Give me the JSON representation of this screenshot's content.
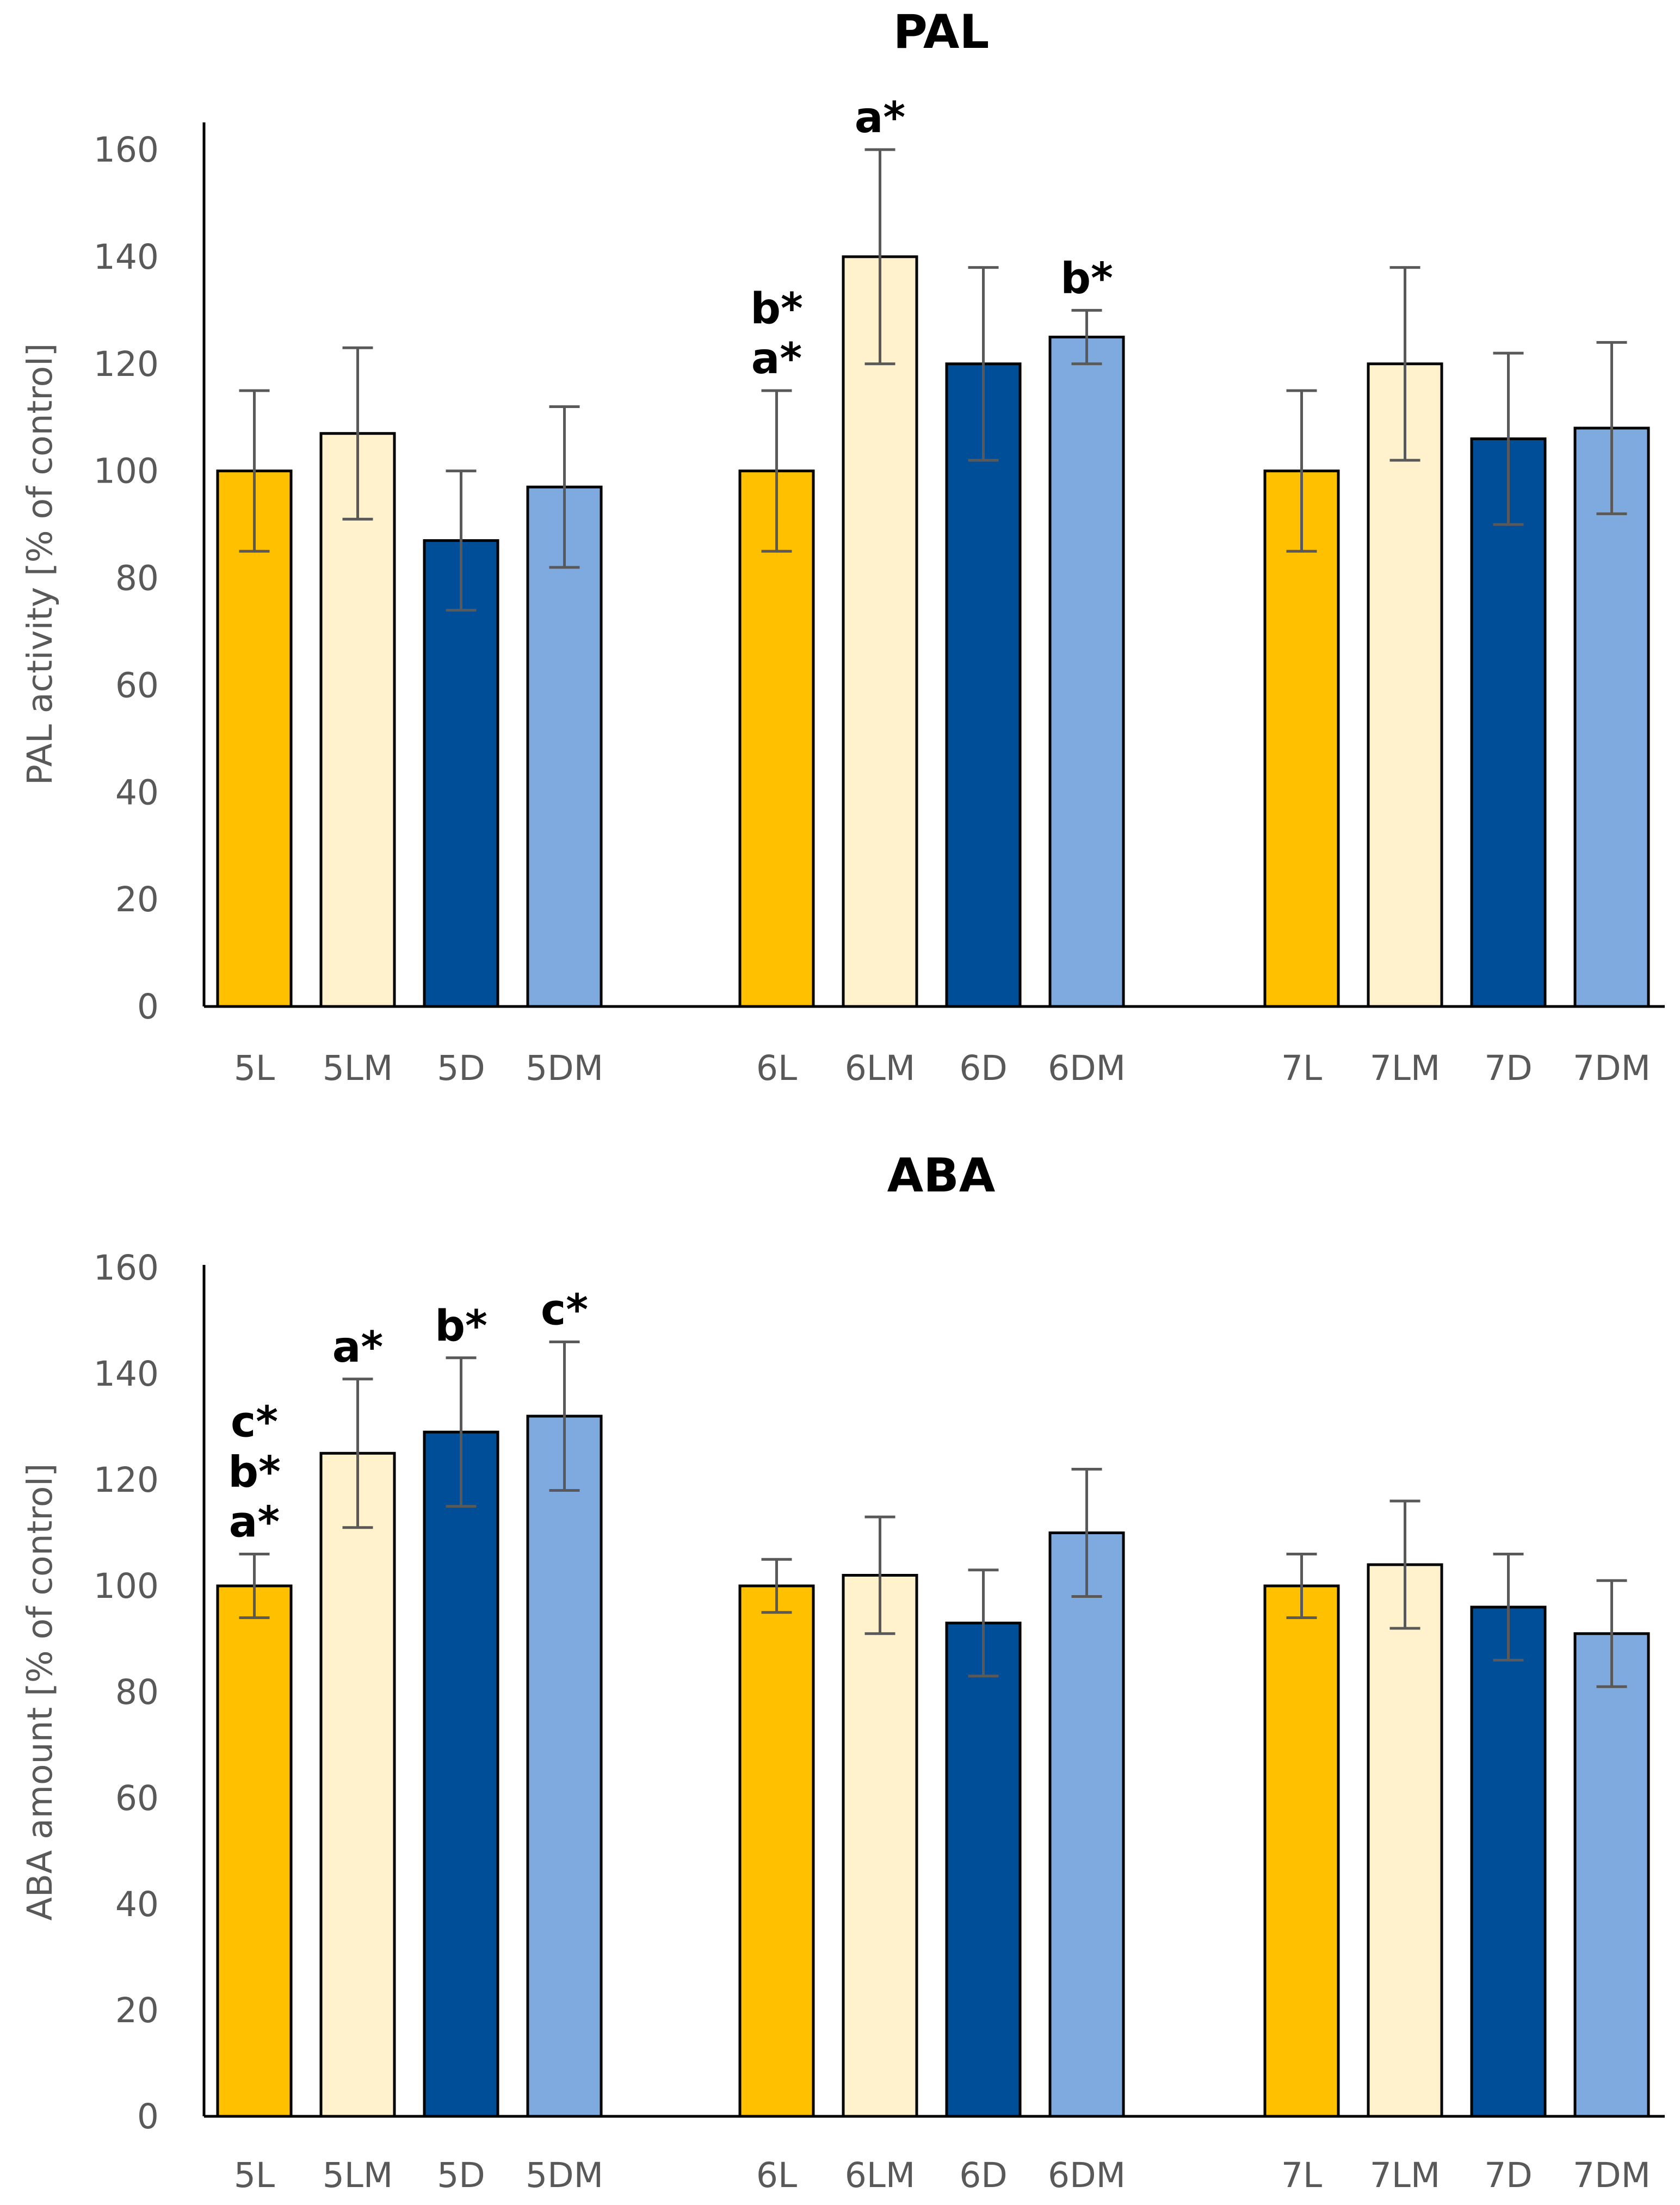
{
  "chart_data": [
    {
      "type": "bar",
      "title": "PAL",
      "ylabel": "PAL activity [% of control]",
      "xlabel": "",
      "ylim": [
        0,
        160
      ],
      "yticks": [
        0,
        20,
        40,
        60,
        80,
        100,
        120,
        140,
        160
      ],
      "groups": [
        {
          "name": "5",
          "bars": [
            {
              "label": "5L",
              "value": 100,
              "err": 15,
              "color": "#FFC000"
            },
            {
              "label": "5LM",
              "value": 107,
              "err": 16,
              "color": "#FFF2CC"
            },
            {
              "label": "5D",
              "value": 87,
              "err": 13,
              "color": "#004E98"
            },
            {
              "label": "5DM",
              "value": 97,
              "err": 15,
              "color": "#7FAADF"
            }
          ]
        },
        {
          "name": "6",
          "bars": [
            {
              "label": "6L",
              "value": 100,
              "err": 15,
              "color": "#FFC000",
              "annotations": [
                "b*",
                "a*"
              ]
            },
            {
              "label": "6LM",
              "value": 140,
              "err": 20,
              "color": "#FFF2CC",
              "annotations": [
                "a*"
              ]
            },
            {
              "label": "6D",
              "value": 120,
              "err": 18,
              "color": "#004E98"
            },
            {
              "label": "6DM",
              "value": 125,
              "err": 5,
              "color": "#7FAADF",
              "annotations": [
                "b*"
              ]
            }
          ]
        },
        {
          "name": "7",
          "bars": [
            {
              "label": "7L",
              "value": 100,
              "err": 15,
              "color": "#FFC000"
            },
            {
              "label": "7LM",
              "value": 120,
              "err": 18,
              "color": "#FFF2CC"
            },
            {
              "label": "7D",
              "value": 106,
              "err": 16,
              "color": "#004E98"
            },
            {
              "label": "7DM",
              "value": 108,
              "err": 16,
              "color": "#7FAADF"
            }
          ]
        }
      ]
    },
    {
      "type": "bar",
      "title": "ABA",
      "ylabel": "ABA amount [% of control]",
      "xlabel": "",
      "ylim": [
        0,
        160
      ],
      "yticks": [
        0,
        20,
        40,
        60,
        80,
        100,
        120,
        140,
        160
      ],
      "groups": [
        {
          "name": "5",
          "bars": [
            {
              "label": "5L",
              "value": 100,
              "err": 6,
              "color": "#FFC000",
              "annotations": [
                "c*",
                "b*",
                "a*"
              ]
            },
            {
              "label": "5LM",
              "value": 125,
              "err": 14,
              "color": "#FFF2CC",
              "annotations": [
                "a*"
              ]
            },
            {
              "label": "5D",
              "value": 129,
              "err": 14,
              "color": "#004E98",
              "annotations": [
                "b*"
              ]
            },
            {
              "label": "5DM",
              "value": 132,
              "err": 14,
              "color": "#7FAADF",
              "annotations": [
                "c*"
              ]
            }
          ]
        },
        {
          "name": "6",
          "bars": [
            {
              "label": "6L",
              "value": 100,
              "err": 5,
              "color": "#FFC000"
            },
            {
              "label": "6LM",
              "value": 102,
              "err": 11,
              "color": "#FFF2CC"
            },
            {
              "label": "6D",
              "value": 93,
              "err": 10,
              "color": "#004E98"
            },
            {
              "label": "6DM",
              "value": 110,
              "err": 12,
              "color": "#7FAADF"
            }
          ]
        },
        {
          "name": "7",
          "bars": [
            {
              "label": "7L",
              "value": 100,
              "err": 6,
              "color": "#FFC000"
            },
            {
              "label": "7LM",
              "value": 104,
              "err": 12,
              "color": "#FFF2CC"
            },
            {
              "label": "7D",
              "value": 96,
              "err": 10,
              "color": "#004E98"
            },
            {
              "label": "7DM",
              "value": 91,
              "err": 10,
              "color": "#7FAADF"
            }
          ]
        }
      ]
    }
  ]
}
